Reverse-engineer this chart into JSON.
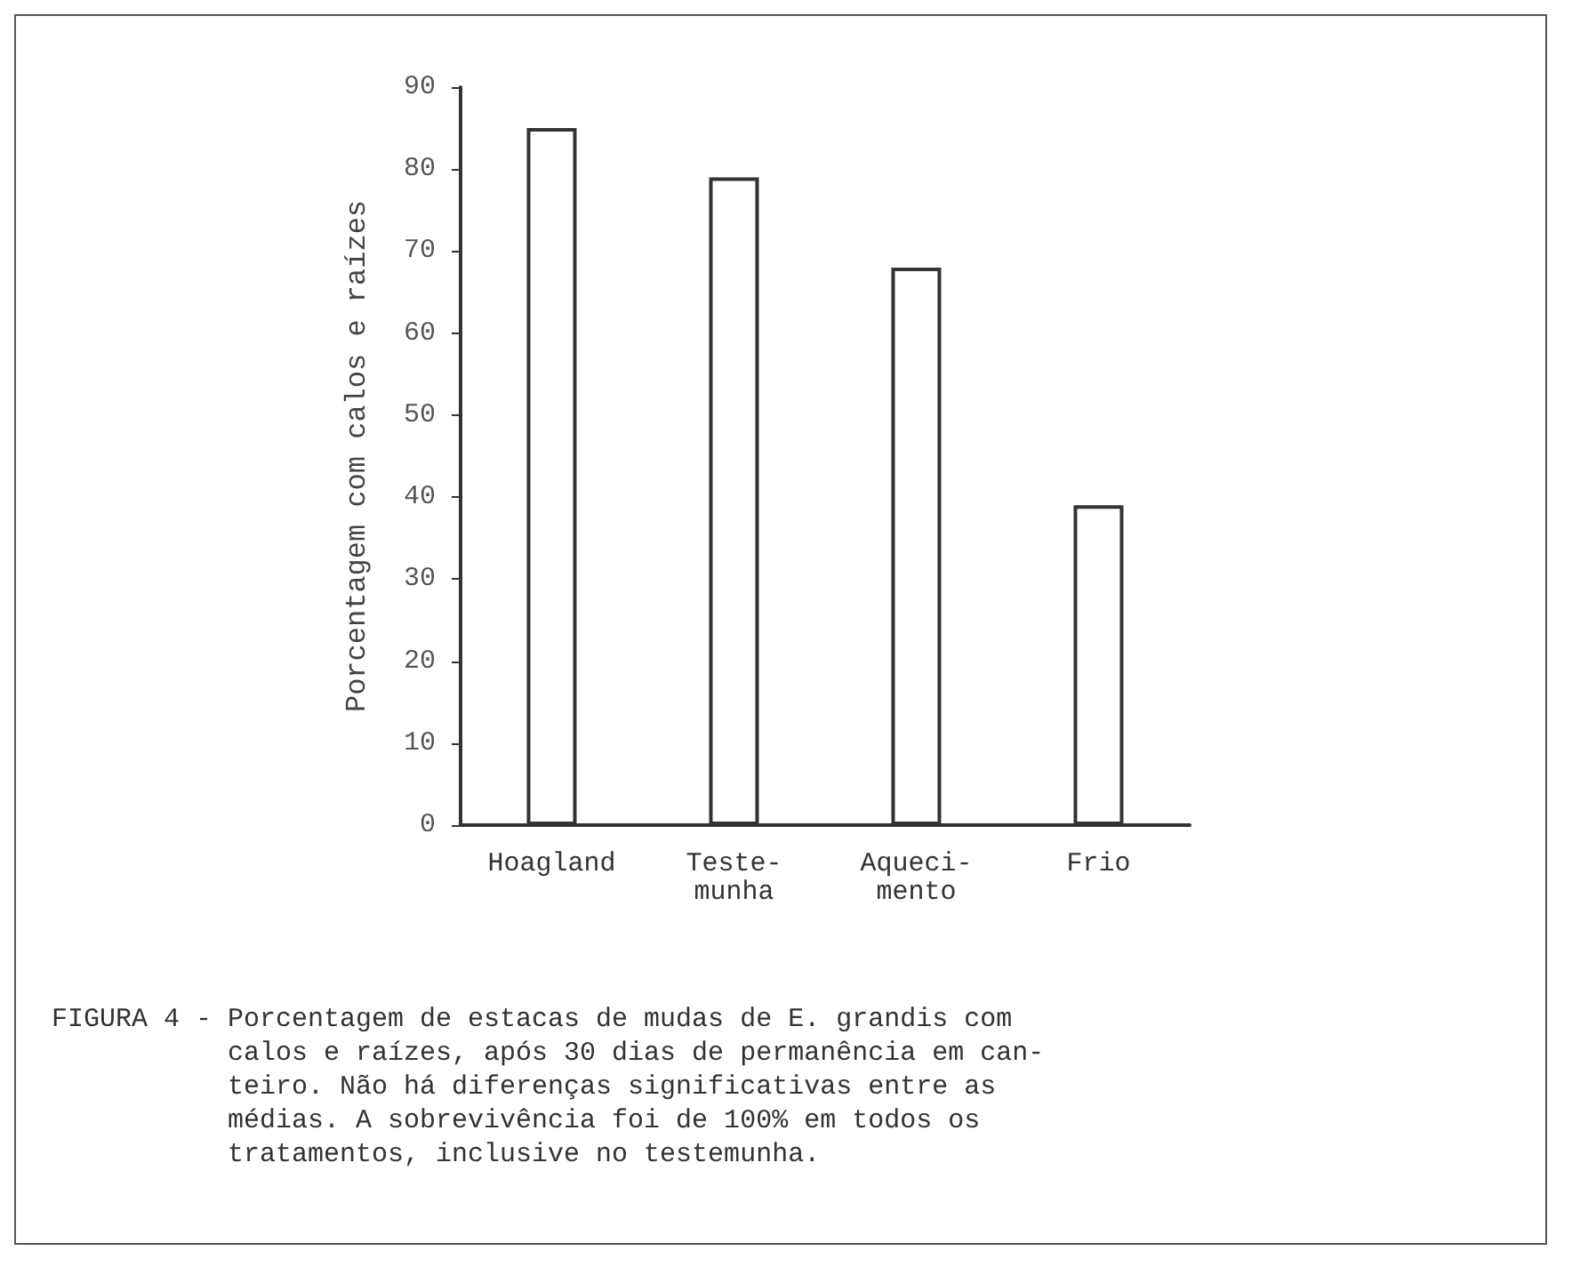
{
  "chart_data": {
    "type": "bar",
    "categories": [
      "Hoagland",
      "Teste-\nmunha",
      "Aqueci-\nmento",
      "Frio"
    ],
    "values": [
      85,
      79,
      68,
      39
    ],
    "color": "#ffffff",
    "ylabel": "Porcentagem com calos e raízes",
    "ylim": [
      0,
      90
    ],
    "yticks": [
      0,
      10,
      20,
      30,
      40,
      50,
      60,
      70,
      80,
      90
    ],
    "grid": false,
    "annotations": [
      "FIGURA 4 - Porcentagem de estacas de mudas de E. grandis com\n           calos e raízes, após 30 dias de permanência em can-\n           teiro. Não há diferenças significativas entre as\n           médias. A sobrevivência foi de 100% em todos os\n           tratamentos, inclusive no testemunha."
    ]
  }
}
